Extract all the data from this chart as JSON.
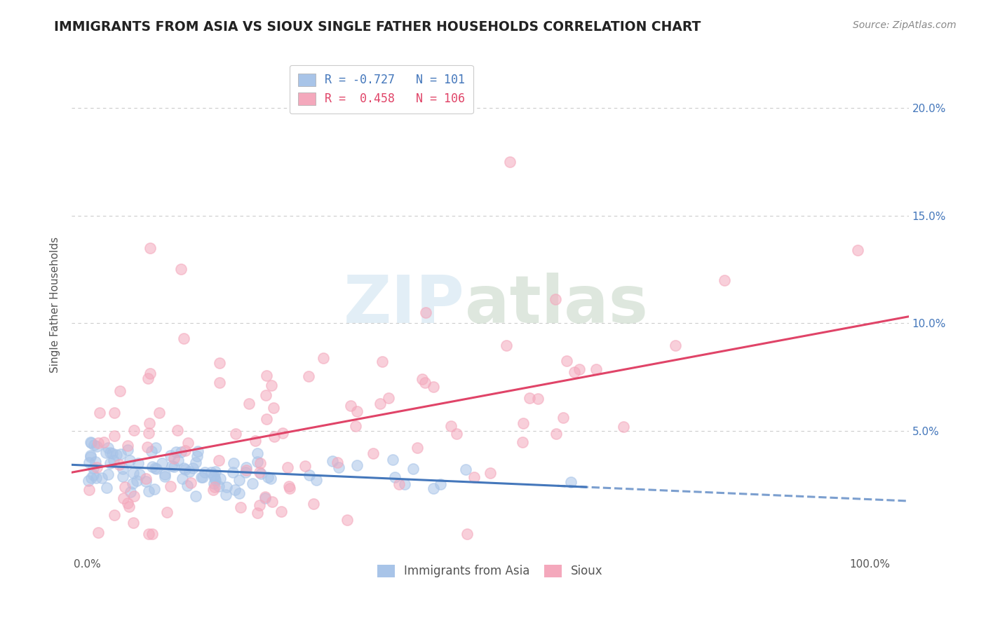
{
  "title": "IMMIGRANTS FROM ASIA VS SIOUX SINGLE FATHER HOUSEHOLDS CORRELATION CHART",
  "source": "Source: ZipAtlas.com",
  "ylabel": "Single Father Households",
  "xlim": [
    -0.02,
    1.05
  ],
  "ylim": [
    -0.008,
    0.225
  ],
  "ytick_labels": [
    "5.0%",
    "10.0%",
    "15.0%",
    "20.0%"
  ],
  "ytick_values": [
    0.05,
    0.1,
    0.15,
    0.2
  ],
  "asia_color": "#a8c4e8",
  "sioux_color": "#f4a8bc",
  "asia_line_color": "#4477bb",
  "sioux_line_color": "#e04468",
  "background_color": "#ffffff",
  "grid_color": "#cccccc",
  "title_color": "#222222",
  "title_fontsize": 13.5,
  "axis_label_fontsize": 11,
  "tick_fontsize": 11,
  "legend_fontsize": 12,
  "source_fontsize": 10,
  "watermark_color": "#d0e4f0",
  "watermark_alpha": 0.6
}
